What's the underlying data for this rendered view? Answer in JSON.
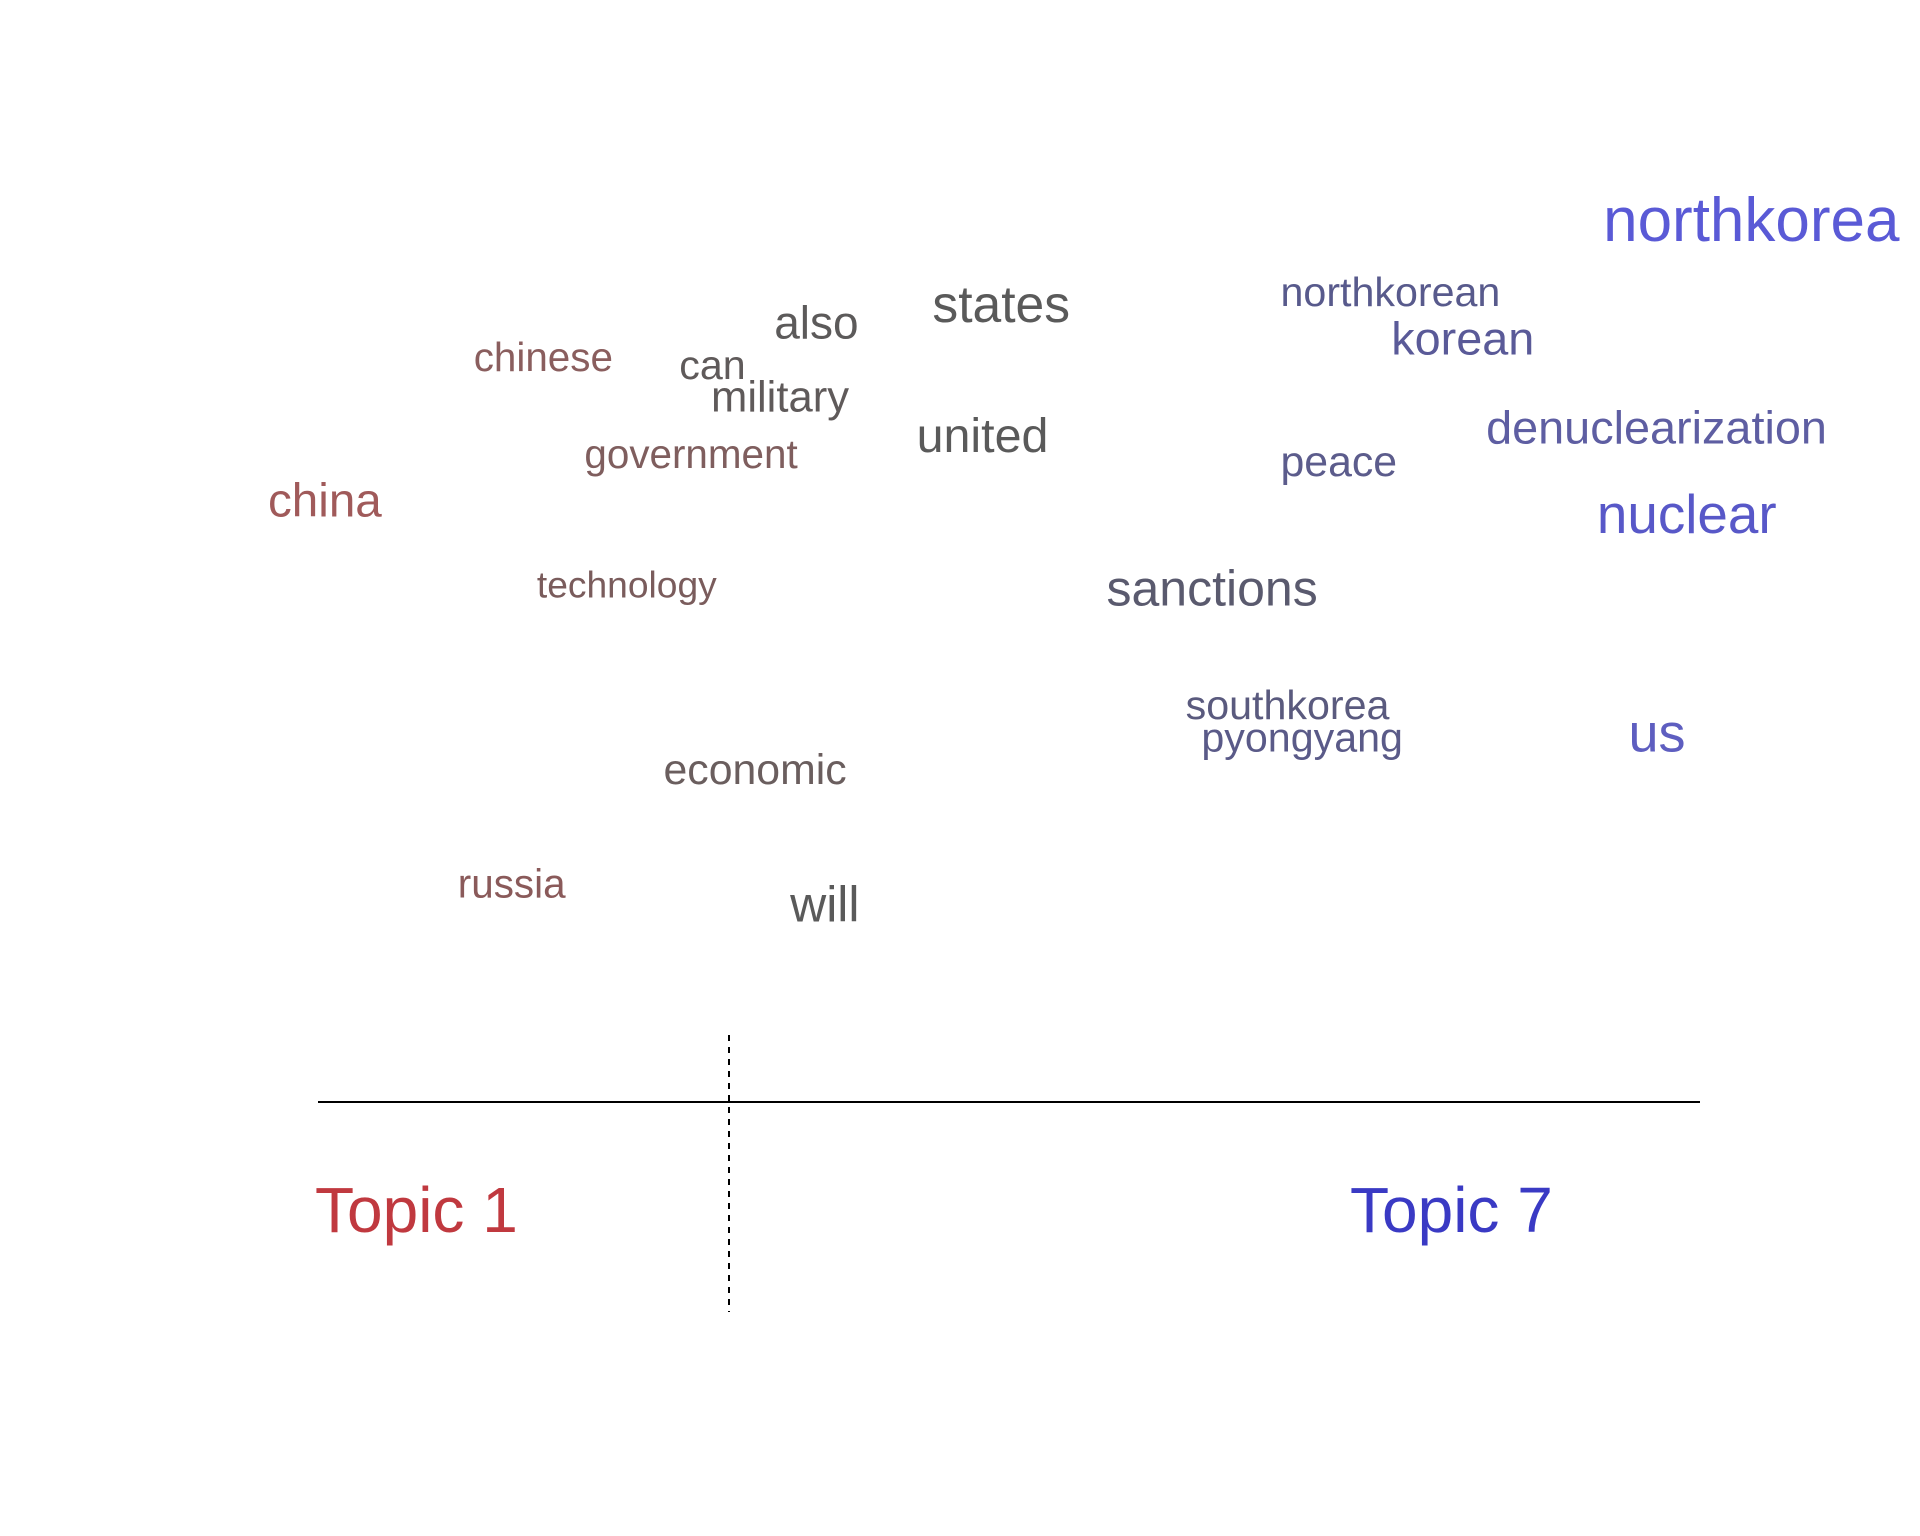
{
  "chart_data": {
    "type": "scatter",
    "title": "",
    "left_label": "Topic 1",
    "right_label": "Topic 7",
    "colors": {
      "topic_left": "#c0393f",
      "topic_right": "#3a3ac4",
      "axis": "#000000"
    },
    "divider_x": 0.35,
    "words": [
      {
        "text": "northkorea",
        "x": 1.0,
        "y": 0.98,
        "size": 1.0,
        "color": "#5a5ad6"
      },
      {
        "text": "northkorean",
        "x": 0.64,
        "y": 0.9,
        "size": 0.48,
        "color": "#585a8c"
      },
      {
        "text": "states",
        "x": 0.42,
        "y": 0.88,
        "size": 0.74,
        "color": "#5a5a5a"
      },
      {
        "text": "also",
        "x": 0.32,
        "y": 0.86,
        "size": 0.6,
        "color": "#5c5a5a"
      },
      {
        "text": "korean",
        "x": 0.71,
        "y": 0.84,
        "size": 0.62,
        "color": "#5a5a98"
      },
      {
        "text": "chinese",
        "x": 0.13,
        "y": 0.82,
        "size": 0.46,
        "color": "#8a5e5e"
      },
      {
        "text": "can",
        "x": 0.26,
        "y": 0.81,
        "size": 0.48,
        "color": "#5f5a5a"
      },
      {
        "text": "military",
        "x": 0.28,
        "y": 0.77,
        "size": 0.54,
        "color": "#5f5a5a"
      },
      {
        "text": "united",
        "x": 0.41,
        "y": 0.72,
        "size": 0.66,
        "color": "#5a5a5a"
      },
      {
        "text": "denuclearization",
        "x": 0.77,
        "y": 0.73,
        "size": 0.62,
        "color": "#5e5ea2"
      },
      {
        "text": "peace",
        "x": 0.64,
        "y": 0.69,
        "size": 0.52,
        "color": "#5c5c8c"
      },
      {
        "text": "government",
        "x": 0.2,
        "y": 0.7,
        "size": 0.46,
        "color": "#7f5e5e"
      },
      {
        "text": "china",
        "x": 0.0,
        "y": 0.64,
        "size": 0.64,
        "color": "#a05a5a"
      },
      {
        "text": "nuclear",
        "x": 0.84,
        "y": 0.62,
        "size": 0.82,
        "color": "#5858c8"
      },
      {
        "text": "technology",
        "x": 0.17,
        "y": 0.54,
        "size": 0.38,
        "color": "#7a5c5c"
      },
      {
        "text": "sanctions",
        "x": 0.53,
        "y": 0.53,
        "size": 0.7,
        "color": "#5a5a6e"
      },
      {
        "text": "southkorea",
        "x": 0.58,
        "y": 0.39,
        "size": 0.48,
        "color": "#5a5a7e"
      },
      {
        "text": "pyongyang",
        "x": 0.59,
        "y": 0.35,
        "size": 0.48,
        "color": "#5a5a88"
      },
      {
        "text": "us",
        "x": 0.86,
        "y": 0.35,
        "size": 0.8,
        "color": "#5e5ec0"
      },
      {
        "text": "economic",
        "x": 0.25,
        "y": 0.31,
        "size": 0.52,
        "color": "#6a5e5e"
      },
      {
        "text": "russia",
        "x": 0.12,
        "y": 0.17,
        "size": 0.46,
        "color": "#8a5a5a"
      },
      {
        "text": "will",
        "x": 0.33,
        "y": 0.14,
        "size": 0.7,
        "color": "#5a5a5a"
      }
    ]
  }
}
